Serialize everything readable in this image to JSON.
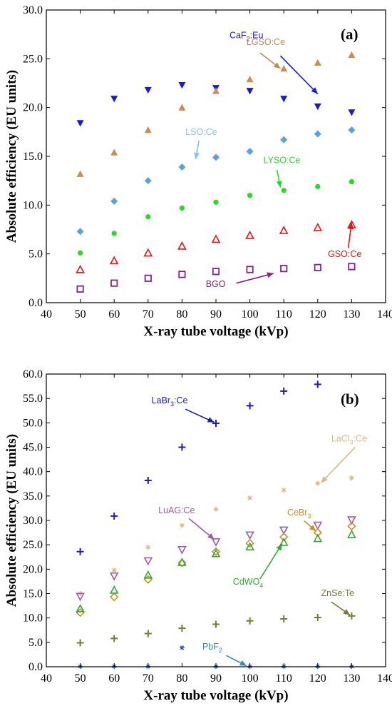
{
  "chart_data": [
    {
      "panel": "(a)",
      "type": "scatter",
      "xlabel": "X-ray tube voltage (kVp)",
      "ylabel": "Absolute efficiency (EU units)",
      "xlim": [
        40,
        140
      ],
      "ylim": [
        0,
        30
      ],
      "xticks": [
        "40",
        "50",
        "60",
        "70",
        "80",
        "90",
        "100",
        "110",
        "120",
        "130",
        "140"
      ],
      "yticks": [
        "0.0",
        "5.0",
        "10.0",
        "15.0",
        "20.0",
        "25.0",
        "30.0"
      ],
      "series": [
        {
          "name": "CaF2:Eu",
          "marker": "tri-down-filled",
          "color": "#1a1ad6",
          "x": [
            50,
            60,
            70,
            80,
            90,
            100,
            110,
            120,
            130
          ],
          "y": [
            18.4,
            20.9,
            21.8,
            22.3,
            22.0,
            21.7,
            20.9,
            20.1,
            19.5
          ]
        },
        {
          "name": "LGSO:Ce",
          "marker": "tri-up-filled",
          "color": "#c89050",
          "x": [
            50,
            60,
            70,
            80,
            90,
            100,
            110,
            120,
            130
          ],
          "y": [
            13.2,
            15.4,
            17.7,
            20.0,
            21.7,
            22.9,
            24.0,
            24.6,
            25.4
          ]
        },
        {
          "name": "LSO:Ce",
          "marker": "diamond-filled",
          "color": "#5aa0e6",
          "x": [
            50,
            60,
            70,
            80,
            90,
            100,
            110,
            120,
            130
          ],
          "y": [
            7.3,
            10.4,
            12.5,
            13.9,
            14.9,
            15.5,
            16.7,
            17.3,
            17.7
          ]
        },
        {
          "name": "LYSO:Ce",
          "marker": "circle-filled",
          "color": "#22dd22",
          "x": [
            50,
            60,
            70,
            80,
            90,
            100,
            110,
            120,
            130
          ],
          "y": [
            5.1,
            7.1,
            8.8,
            9.7,
            10.3,
            11.0,
            11.5,
            11.9,
            12.4
          ]
        },
        {
          "name": "GSO:Ce",
          "marker": "tri-up-open",
          "color": "#ee1111",
          "x": [
            50,
            60,
            70,
            80,
            90,
            100,
            110,
            120,
            130
          ],
          "y": [
            3.4,
            4.3,
            5.1,
            5.8,
            6.5,
            6.9,
            7.4,
            7.7,
            8.0
          ]
        },
        {
          "name": "BGO",
          "marker": "square-open",
          "color": "#882288",
          "x": [
            50,
            60,
            70,
            80,
            90,
            100,
            110,
            120,
            130
          ],
          "y": [
            1.4,
            2.0,
            2.5,
            2.9,
            3.2,
            3.4,
            3.5,
            3.6,
            3.7
          ]
        }
      ],
      "annotations": [
        {
          "text": "CaF",
          "sub": "2",
          "rest": ":Eu",
          "color": "#1a1ad6",
          "tx": 94,
          "ty": 27.1,
          "ax1": 109,
          "ay1": 25.3,
          "ax2": 120,
          "ay2": 21.4
        },
        {
          "text": "LGSO:Ce",
          "sub": "",
          "rest": "",
          "color": "#c08850",
          "tx": 99,
          "ty": 26.4,
          "ax1": 103,
          "ay1": 25.6,
          "ax2": 109,
          "ay2": 24.0
        },
        {
          "text": "LSO:Ce",
          "sub": "",
          "rest": "",
          "color": "#8ac0ee",
          "tx": 81,
          "ty": 17.2,
          "ax1": 85,
          "ay1": 16.6,
          "ax2": 84,
          "ay2": 14.7
        },
        {
          "text": "LYSO:Ce",
          "sub": "",
          "rest": "",
          "color": "#22dd22",
          "tx": 104,
          "ty": 14.3,
          "ax1": 108,
          "ay1": 13.6,
          "ax2": 109,
          "ay2": 11.8
        },
        {
          "text": "GSO:Ce",
          "sub": "",
          "rest": "",
          "color": "#ee1111",
          "tx": 123,
          "ty": 4.7,
          "ax1": 129,
          "ay1": 5.6,
          "ax2": 130,
          "ay2": 8.2
        },
        {
          "text": "BGO",
          "sub": "",
          "rest": "",
          "color": "#882288",
          "tx": 87,
          "ty": 1.6,
          "ax1": 96,
          "ay1": 2.0,
          "ax2": 107,
          "ay2": 3.0
        }
      ]
    },
    {
      "panel": "(b)",
      "type": "scatter",
      "xlabel": "X-ray tube voltage (kVp)",
      "ylabel": "Absolute efficiency (EU units)",
      "xlim": [
        40,
        140
      ],
      "ylim": [
        0,
        60
      ],
      "xticks": [
        "40",
        "50",
        "60",
        "70",
        "80",
        "90",
        "100",
        "110",
        "120",
        "130",
        "140"
      ],
      "yticks": [
        "0.0",
        "5.0",
        "10.0",
        "15.0",
        "20.0",
        "25.0",
        "30.0",
        "35.0",
        "40.0",
        "45.0",
        "50.0",
        "55.0",
        "60.0"
      ],
      "series": [
        {
          "name": "LaBr3:Ce",
          "marker": "plus",
          "color": "#1a1ac6",
          "x": [
            50,
            60,
            70,
            80,
            90,
            100,
            110,
            120
          ],
          "y": [
            23.6,
            30.9,
            38.2,
            45.0,
            49.9,
            53.5,
            56.5,
            57.9
          ]
        },
        {
          "name": "LaCl3:Ce",
          "marker": "star",
          "color": "#d8b880",
          "x": [
            50,
            60,
            70,
            80,
            90,
            100,
            110,
            120,
            130
          ],
          "y": [
            15.0,
            19.8,
            24.5,
            29.0,
            32.3,
            34.6,
            36.2,
            37.6,
            38.7
          ]
        },
        {
          "name": "LuAG:Ce",
          "marker": "tri-down-open",
          "color": "#a05aa8",
          "x": [
            50,
            60,
            70,
            80,
            90,
            100,
            110,
            120,
            130
          ],
          "y": [
            14.4,
            18.6,
            21.7,
            24.0,
            25.6,
            27.0,
            28.0,
            29.0,
            30.1
          ]
        },
        {
          "name": "CeBr3",
          "marker": "diamond-open",
          "color": "#c89020",
          "x": [
            50,
            60,
            70,
            80,
            90,
            100,
            110,
            120,
            130
          ],
          "y": [
            11.1,
            14.3,
            17.9,
            21.3,
            23.6,
            25.3,
            26.6,
            27.5,
            28.8
          ]
        },
        {
          "name": "CdWO4",
          "marker": "tri-up-open",
          "color": "#33aa33",
          "x": [
            50,
            60,
            70,
            80,
            90,
            100,
            110,
            120,
            130
          ],
          "y": [
            11.9,
            15.7,
            18.8,
            21.4,
            23.2,
            24.6,
            25.5,
            26.3,
            27.1
          ]
        },
        {
          "name": "ZnSe:Te",
          "marker": "plus",
          "color": "#7a7a30",
          "x": [
            50,
            60,
            70,
            80,
            90,
            100,
            110,
            120,
            130
          ],
          "y": [
            4.9,
            5.8,
            6.8,
            7.9,
            8.7,
            9.4,
            9.8,
            10.1,
            10.4
          ]
        },
        {
          "name": "PbF2",
          "marker": "star",
          "color": "#2255aa",
          "x": [
            50,
            60,
            70,
            80,
            90,
            100,
            110,
            120,
            130
          ],
          "y": [
            0.05,
            0.05,
            0.05,
            3.9,
            0.05,
            0.05,
            0.05,
            0.05,
            0.05
          ]
        }
      ],
      "annotations": [
        {
          "text": "LaBr",
          "sub": "3",
          "rest": ":Ce",
          "color": "#1a1ac6",
          "tx": 71,
          "ty": 54.0,
          "ax1": 81,
          "ay1": 52.8,
          "ax2": 89.5,
          "ay2": 50.1
        },
        {
          "text": "LaCl",
          "sub": "3",
          "rest": ":Ce",
          "color": "#d8b880",
          "tx": 124,
          "ty": 46.2,
          "ax1": 131,
          "ay1": 45.0,
          "ax2": 121,
          "ay2": 37.7
        },
        {
          "text": "LuAG:Ce",
          "sub": "",
          "rest": "",
          "color": "#a05aa8",
          "tx": 73,
          "ty": 31.5,
          "ax1": 82,
          "ay1": 30.4,
          "ax2": 89.5,
          "ay2": 26.1
        },
        {
          "text": "CeBr",
          "sub": "3",
          "rest": "",
          "color": "#c89020",
          "tx": 111,
          "ty": 31.0,
          "ax1": 116,
          "ay1": 29.9,
          "ax2": 119.5,
          "ay2": 27.8
        },
        {
          "text": "CdWO",
          "sub": "4",
          "rest": "",
          "color": "#33aa33",
          "tx": 95,
          "ty": 16.8,
          "ax1": 103,
          "ay1": 18.0,
          "ax2": 109.5,
          "ay2": 25.2
        },
        {
          "text": "ZnSe:Te",
          "sub": "",
          "rest": "",
          "color": "#7a7a30",
          "tx": 121,
          "ty": 14.5,
          "ax1": 124,
          "ay1": 13.3,
          "ax2": 129.5,
          "ay2": 10.6
        },
        {
          "text": "PbF",
          "sub": "2",
          "rest": "",
          "color": "#3388cc",
          "tx": 86,
          "ty": 3.5,
          "ax1": 93,
          "ay1": 2.3,
          "ax2": 99,
          "ay2": 0.2
        }
      ]
    }
  ]
}
